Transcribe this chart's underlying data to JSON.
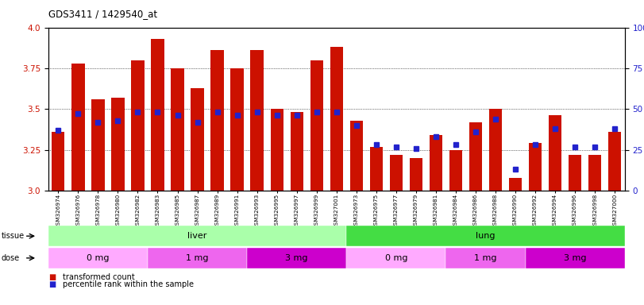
{
  "title": "GDS3411 / 1429540_at",
  "samples": [
    "GSM326974",
    "GSM326976",
    "GSM326978",
    "GSM326980",
    "GSM326982",
    "GSM326983",
    "GSM326985",
    "GSM326987",
    "GSM326989",
    "GSM326991",
    "GSM326993",
    "GSM326995",
    "GSM326997",
    "GSM326999",
    "GSM327001",
    "GSM326973",
    "GSM326975",
    "GSM326977",
    "GSM326979",
    "GSM326981",
    "GSM326984",
    "GSM326986",
    "GSM326988",
    "GSM326990",
    "GSM326992",
    "GSM326994",
    "GSM326996",
    "GSM326998",
    "GSM327000"
  ],
  "red_values": [
    3.36,
    3.78,
    3.56,
    3.57,
    3.8,
    3.93,
    3.75,
    3.63,
    3.86,
    3.75,
    3.86,
    3.5,
    3.48,
    3.8,
    3.88,
    3.43,
    3.27,
    3.22,
    3.2,
    3.34,
    3.25,
    3.42,
    3.5,
    3.08,
    3.29,
    3.46,
    3.22,
    3.22,
    3.36
  ],
  "percentile_values": [
    37,
    47,
    42,
    43,
    48,
    48,
    46,
    42,
    48,
    46,
    48,
    46,
    46,
    48,
    48,
    40,
    28,
    27,
    26,
    33,
    28,
    36,
    44,
    13,
    28,
    38,
    27,
    27,
    38
  ],
  "tissue_groups": [
    {
      "label": "liver",
      "start": 0,
      "end": 15,
      "color": "#aaffaa"
    },
    {
      "label": "lung",
      "start": 15,
      "end": 29,
      "color": "#44dd44"
    }
  ],
  "dose_groups": [
    {
      "label": "0 mg",
      "start": 0,
      "end": 5,
      "color": "#ffaaff"
    },
    {
      "label": "1 mg",
      "start": 5,
      "end": 10,
      "color": "#ee66ee"
    },
    {
      "label": "3 mg",
      "start": 10,
      "end": 15,
      "color": "#cc00cc"
    },
    {
      "label": "0 mg",
      "start": 15,
      "end": 20,
      "color": "#ffaaff"
    },
    {
      "label": "1 mg",
      "start": 20,
      "end": 24,
      "color": "#ee66ee"
    },
    {
      "label": "3 mg",
      "start": 24,
      "end": 29,
      "color": "#cc00cc"
    }
  ],
  "ylim_left": [
    3.0,
    4.0
  ],
  "ylim_right": [
    0,
    100
  ],
  "yticks_left": [
    3.0,
    3.25,
    3.5,
    3.75,
    4.0
  ],
  "yticks_right": [
    0,
    25,
    50,
    75,
    100
  ],
  "bar_color_red": "#cc1100",
  "bar_color_blue": "#2222cc",
  "background_color": "#ffffff"
}
